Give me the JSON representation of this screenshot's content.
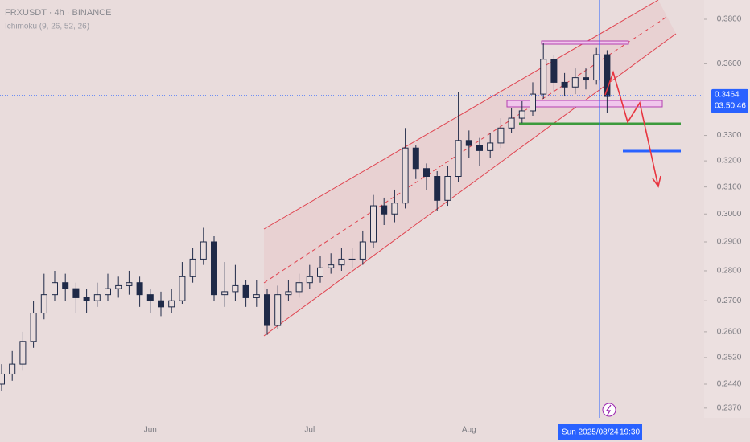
{
  "chart_data": {
    "type": "candlestick",
    "title": "FRXUSDT · 4h · BINANCE",
    "subtitle": "Ichimoku (9, 26, 52, 26)",
    "categories": [
      null,
      null,
      null,
      null,
      null,
      null,
      null,
      null,
      null,
      null,
      null,
      null,
      null,
      null,
      "Jun",
      null,
      null,
      null,
      null,
      null,
      null,
      null,
      null,
      null,
      null,
      null,
      null,
      null,
      null,
      "Jul",
      null,
      null,
      null,
      null,
      null,
      null,
      null,
      null,
      null,
      null,
      null,
      null,
      null,
      null,
      "Aug",
      null,
      null,
      null,
      null,
      null,
      null,
      null,
      null,
      null,
      null,
      null,
      null,
      null,
      null,
      null,
      null,
      null,
      null,
      null,
      null,
      null,
      null
    ],
    "open": [
      0.244,
      0.247,
      0.25,
      0.257,
      0.266,
      0.272,
      0.276,
      0.274,
      0.271,
      0.27,
      0.272,
      0.274,
      0.275,
      0.276,
      0.272,
      0.27,
      0.268,
      0.27,
      0.278,
      0.284,
      0.29,
      0.272,
      0.273,
      0.275,
      0.271,
      0.272,
      0.262,
      0.272,
      0.273,
      0.276,
      0.278,
      0.281,
      0.282,
      0.284,
      0.284,
      0.29,
      0.303,
      0.3,
      0.304,
      0.325,
      0.317,
      0.314,
      0.305,
      0.314,
      0.328,
      0.326,
      0.324,
      0.327,
      0.333,
      0.337,
      0.34,
      0.347,
      0.362,
      0.352,
      0.35,
      0.354,
      0.353,
      0.364,
      null,
      null,
      null,
      null,
      null,
      null,
      null,
      null,
      null
    ],
    "high": [
      0.25,
      0.254,
      0.26,
      0.27,
      0.279,
      0.28,
      0.279,
      0.276,
      0.274,
      0.276,
      0.279,
      0.278,
      0.28,
      0.278,
      0.274,
      0.273,
      0.274,
      0.283,
      0.288,
      0.295,
      0.292,
      0.283,
      0.282,
      0.277,
      0.277,
      0.274,
      0.275,
      0.277,
      0.279,
      0.282,
      0.285,
      0.286,
      0.288,
      0.288,
      0.294,
      0.307,
      0.306,
      0.309,
      0.333,
      0.326,
      0.319,
      0.316,
      0.318,
      0.348,
      0.332,
      0.329,
      0.331,
      0.337,
      0.341,
      0.344,
      0.352,
      0.369,
      0.364,
      0.356,
      0.358,
      0.358,
      0.367,
      0.366,
      null,
      null,
      null,
      null,
      null,
      null,
      null,
      null,
      null
    ],
    "low": [
      0.242,
      0.245,
      0.248,
      0.255,
      0.264,
      0.27,
      0.27,
      0.266,
      0.266,
      0.268,
      0.27,
      0.271,
      0.272,
      0.268,
      0.266,
      0.265,
      0.266,
      0.269,
      0.276,
      0.282,
      0.27,
      0.268,
      0.27,
      0.268,
      0.268,
      0.259,
      0.261,
      0.27,
      0.271,
      0.274,
      0.276,
      0.279,
      0.28,
      0.281,
      0.282,
      0.288,
      0.296,
      0.297,
      0.302,
      0.313,
      0.309,
      0.301,
      0.303,
      0.312,
      0.321,
      0.318,
      0.321,
      0.325,
      0.331,
      0.335,
      0.338,
      0.345,
      0.348,
      0.346,
      0.347,
      0.349,
      0.351,
      0.339,
      null,
      null,
      null,
      null,
      null,
      null,
      null,
      null,
      null
    ],
    "close": [
      0.247,
      0.25,
      0.257,
      0.266,
      0.272,
      0.276,
      0.274,
      0.271,
      0.27,
      0.272,
      0.274,
      0.275,
      0.276,
      0.272,
      0.27,
      0.268,
      0.27,
      0.278,
      0.284,
      0.29,
      0.272,
      0.273,
      0.275,
      0.271,
      0.272,
      0.262,
      0.272,
      0.273,
      0.276,
      0.278,
      0.281,
      0.282,
      0.284,
      0.284,
      0.29,
      0.303,
      0.3,
      0.304,
      0.325,
      0.317,
      0.314,
      0.305,
      0.314,
      0.328,
      0.326,
      0.324,
      0.327,
      0.333,
      0.337,
      0.34,
      0.347,
      0.362,
      0.352,
      0.35,
      0.354,
      0.353,
      0.364,
      0.346,
      null,
      null,
      null,
      null,
      null,
      null,
      null,
      null,
      null
    ],
    "color": "#1f2a48",
    "log_scale": true,
    "ylim": [
      0.2342,
      0.389
    ],
    "yticks": [
      {
        "value": 0.38,
        "label": "0.3800"
      },
      {
        "value": 0.36,
        "label": "0.3600"
      },
      {
        "value": 0.33,
        "label": "0.3300"
      },
      {
        "value": 0.32,
        "label": "0.3200"
      },
      {
        "value": 0.31,
        "label": "0.3100"
      },
      {
        "value": 0.3,
        "label": "0.3000"
      },
      {
        "value": 0.29,
        "label": "0.2900"
      },
      {
        "value": 0.28,
        "label": "0.2800"
      },
      {
        "value": 0.27,
        "label": "0.2700"
      },
      {
        "value": 0.26,
        "label": "0.2600"
      },
      {
        "value": 0.252,
        "label": "0.2520"
      },
      {
        "value": 0.244,
        "label": "0.2440"
      },
      {
        "value": 0.237,
        "label": "0.2370"
      }
    ],
    "last_price": 0.3464,
    "countdown": "03:50:46",
    "crosshair": {
      "date": "Sun 2025/08/24",
      "time": "19:30"
    }
  }
}
